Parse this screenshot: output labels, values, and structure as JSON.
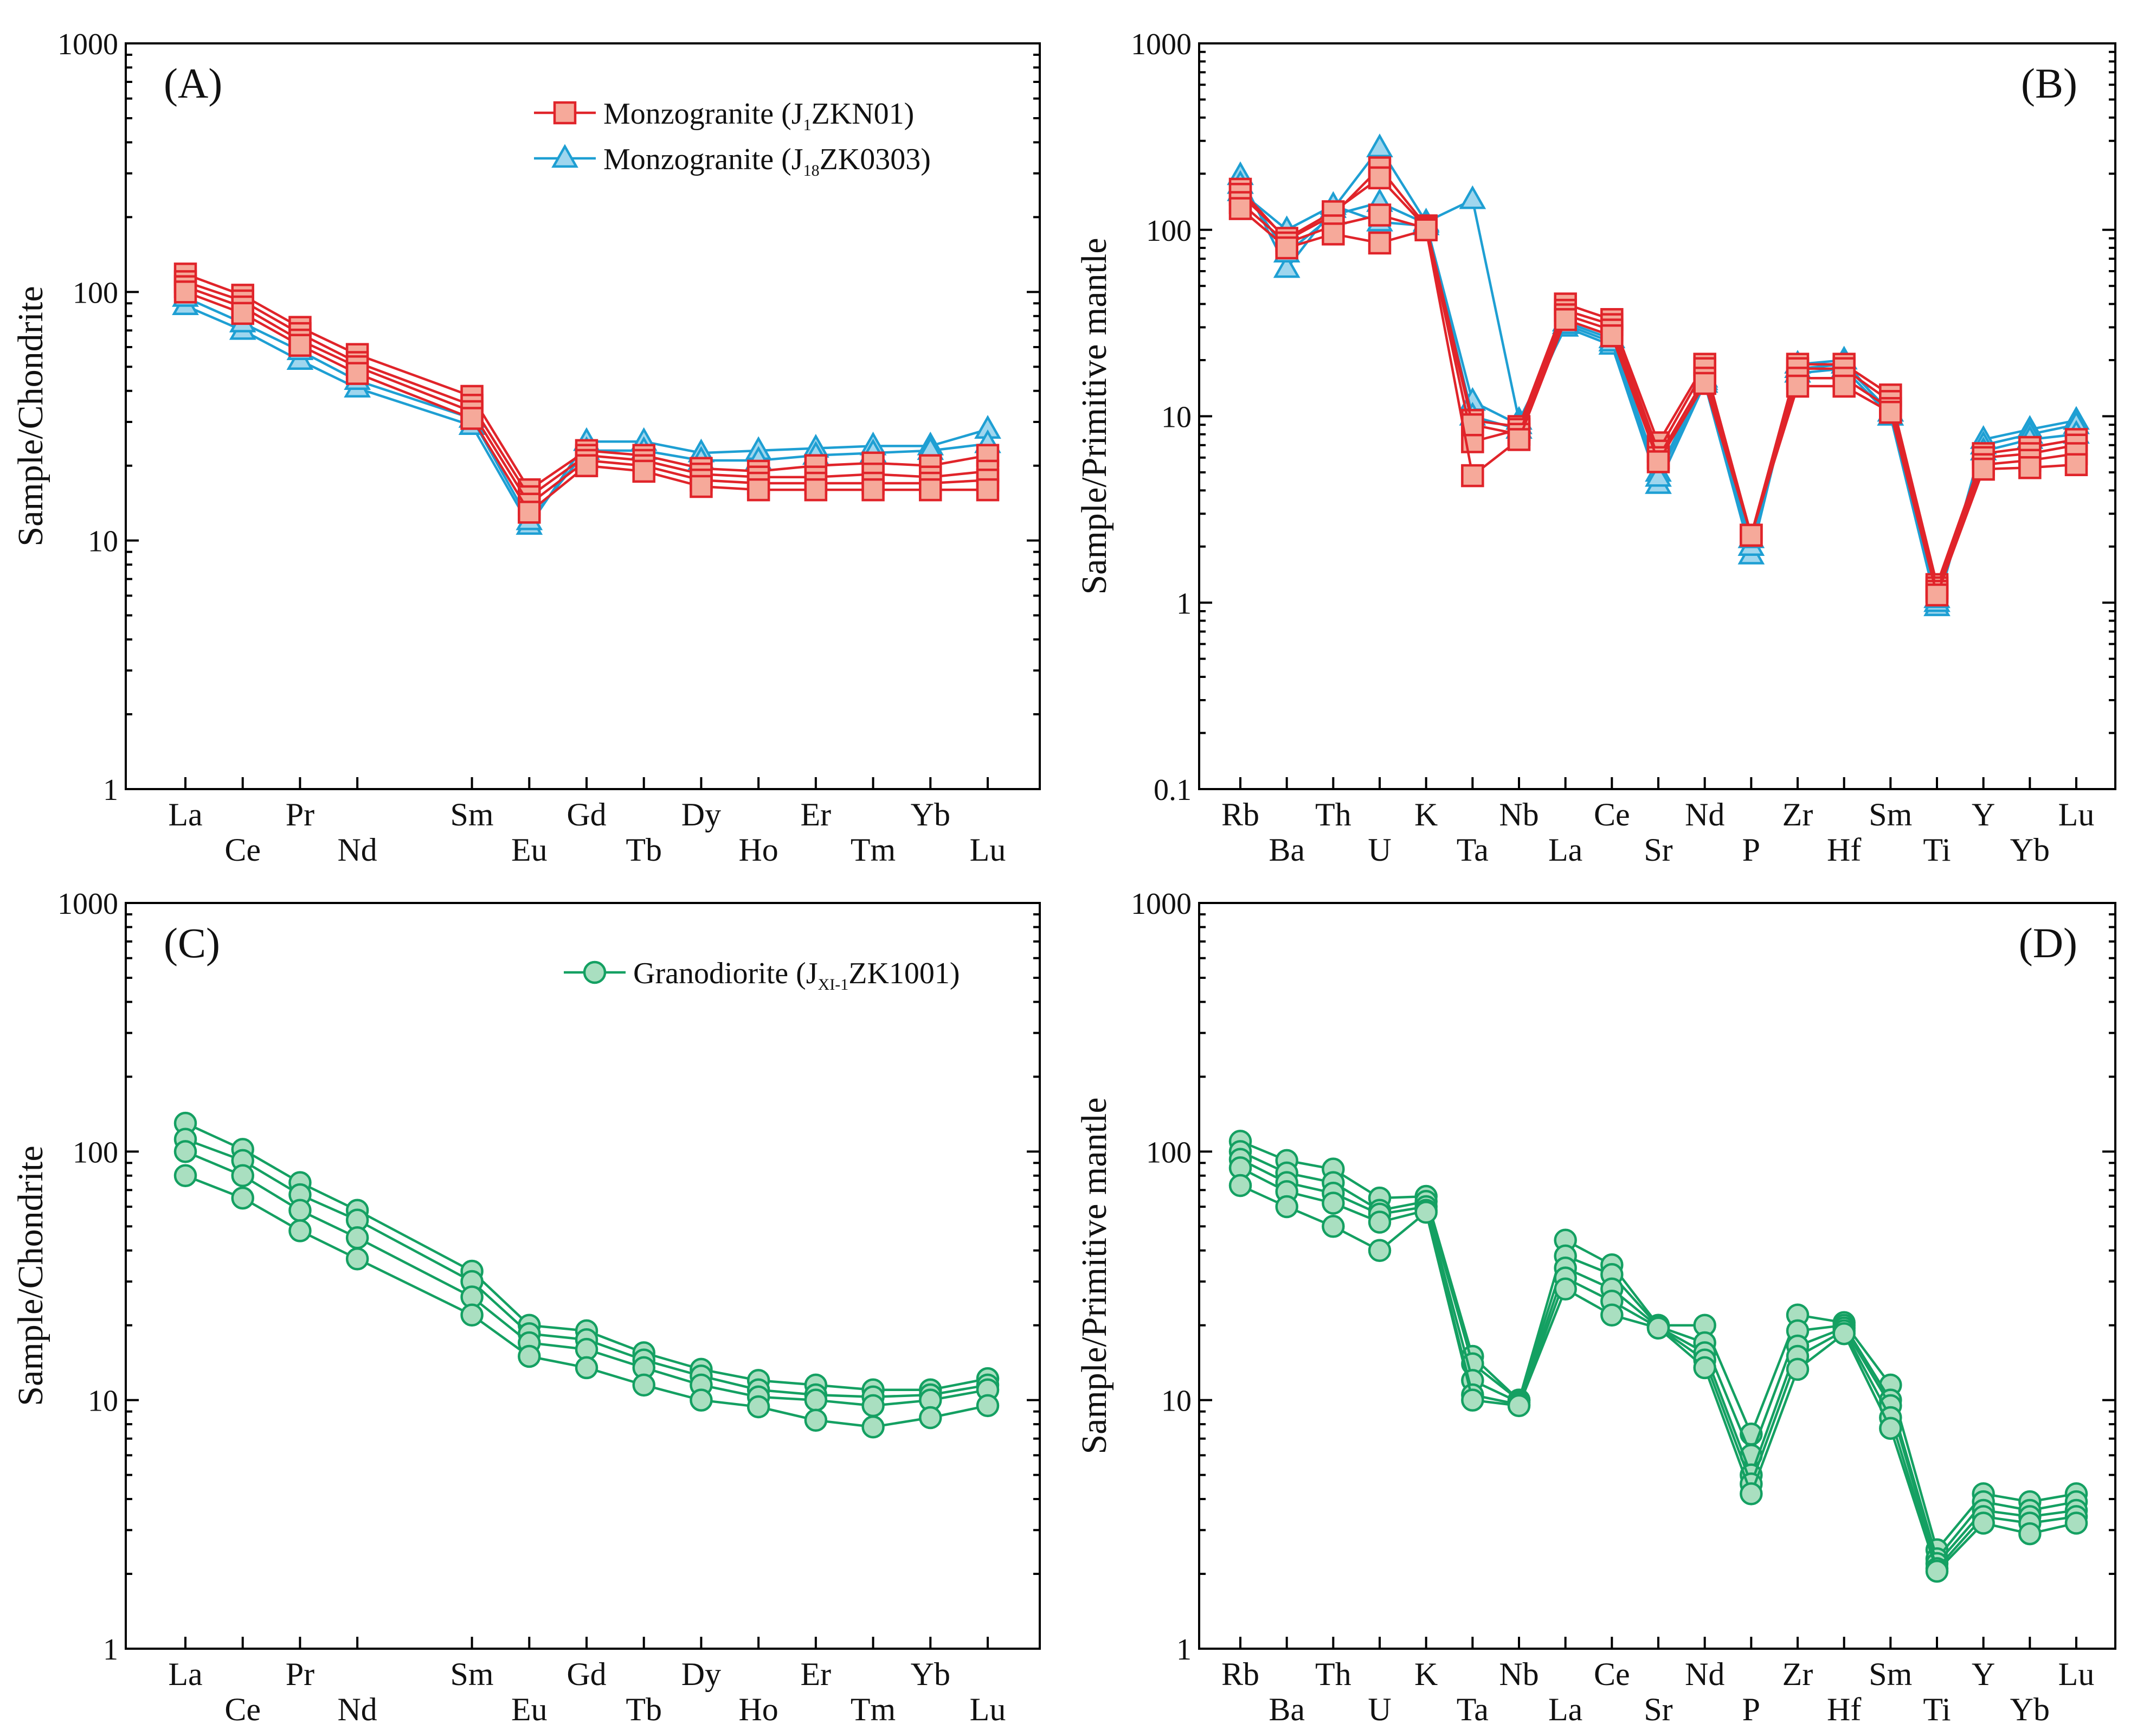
{
  "colors": {
    "red_line": "#e0242a",
    "red_fill": "#f6a99a",
    "blue_line": "#1e9fd3",
    "blue_fill": "#9fd6ee",
    "green_line": "#14a062",
    "green_fill": "#a9dfc0",
    "axis": "#000000"
  },
  "chart_data": [
    {
      "id": "A",
      "type": "line",
      "panel_label": "(A)",
      "ylabel": "Sample/Chondrite",
      "yscale": "log",
      "ylim": [
        1,
        1000
      ],
      "ytick_values": [
        1,
        10,
        100,
        1000
      ],
      "ytick_labels": [
        "1",
        "10",
        "100",
        "1000"
      ],
      "categories": [
        "La",
        "Ce",
        "Pr",
        "Nd",
        "Sm",
        "Eu",
        "Gd",
        "Tb",
        "Dy",
        "Ho",
        "Er",
        "Tm",
        "Yb",
        "Lu"
      ],
      "x_positions": [
        0,
        1,
        2,
        3,
        5,
        6,
        7,
        8,
        9,
        10,
        11,
        12,
        13,
        14
      ],
      "legend_position": "top-right",
      "legend": [
        {
          "label": "Monzogranite (J",
          "sub": "1",
          "rest": "ZKN01)",
          "group": "red"
        },
        {
          "label": "Monzogranite (J",
          "sub": "18",
          "rest": "ZK0303)",
          "group": "blue"
        }
      ],
      "series": [
        {
          "name": "J18ZK0303-1",
          "group": "blue",
          "marker": "triangle",
          "values": [
            88,
            70,
            53,
            41,
            29,
            11.5,
            25,
            25,
            22.5,
            23,
            23.5,
            24,
            24,
            28
          ]
        },
        {
          "name": "J18ZK0303-2",
          "group": "blue",
          "marker": "triangle",
          "values": [
            95,
            75,
            58,
            44,
            31,
            12,
            23,
            23,
            21,
            21,
            22,
            22.5,
            23,
            24.5
          ]
        },
        {
          "name": "J1ZKN01-1",
          "group": "red",
          "marker": "square",
          "values": [
            118,
            97,
            72,
            56,
            38,
            16,
            23,
            22,
            19.5,
            19,
            20,
            20.5,
            20,
            22
          ]
        },
        {
          "name": "J1ZKN01-2",
          "group": "red",
          "marker": "square",
          "values": [
            110,
            92,
            68,
            52,
            35,
            15,
            22,
            21,
            18.5,
            18,
            18,
            18.5,
            18,
            19
          ]
        },
        {
          "name": "J1ZKN01-3",
          "group": "red",
          "marker": "square",
          "values": [
            105,
            87,
            64,
            50,
            33,
            14,
            21,
            20,
            17.5,
            17,
            17,
            17,
            17,
            17.5
          ]
        },
        {
          "name": "J1ZKN01-4",
          "group": "red",
          "marker": "square",
          "values": [
            100,
            82,
            61,
            47,
            31,
            13,
            20,
            19,
            16.5,
            16,
            16,
            16,
            16,
            16
          ]
        }
      ]
    },
    {
      "id": "B",
      "type": "line",
      "panel_label": "(B)",
      "ylabel": "Sample/Primitive mantle",
      "yscale": "log",
      "ylim": [
        0.1,
        1000
      ],
      "ytick_values": [
        0.1,
        1,
        10,
        100,
        1000
      ],
      "ytick_labels": [
        "0.1",
        "1",
        "10",
        "100",
        "1000"
      ],
      "categories": [
        "Rb",
        "Ba",
        "Th",
        "U",
        "K",
        "Ta",
        "Nb",
        "La",
        "Ce",
        "Sr",
        "Nd",
        "P",
        "Zr",
        "Hf",
        "Sm",
        "Ti",
        "Y",
        "Yb",
        "Lu"
      ],
      "x_positions": [
        0,
        1,
        2,
        3,
        4,
        5,
        6,
        7,
        8,
        9,
        10,
        11,
        12,
        13,
        14,
        15,
        16,
        17,
        18
      ],
      "series": [
        {
          "name": "J18ZK0303-1",
          "group": "blue",
          "marker": "triangle",
          "values": [
            195,
            62,
            130,
            275,
            110,
            145,
            9.5,
            30,
            24,
            4.3,
            15,
            1.8,
            19,
            20,
            10,
            0.95,
            7.5,
            8.5,
            9.5
          ]
        },
        {
          "name": "J18ZK0303-2",
          "group": "blue",
          "marker": "triangle",
          "values": [
            175,
            75,
            120,
            140,
            108,
            12,
            9,
            32,
            26,
            5,
            16,
            2,
            18,
            19,
            10.5,
            1.0,
            7,
            8,
            9
          ]
        },
        {
          "name": "J18ZK0303-3",
          "group": "blue",
          "marker": "triangle",
          "values": [
            160,
            100,
            135,
            110,
            105,
            10,
            8.5,
            31,
            25,
            4.7,
            15.5,
            2.2,
            17,
            18,
            10,
            1.05,
            6.5,
            7.5,
            8
          ]
        },
        {
          "name": "J1ZKN01-1",
          "group": "red",
          "marker": "square",
          "values": [
            165,
            88,
            120,
            215,
            105,
            9.5,
            8.8,
            40,
            33,
            7.2,
            19,
            2.3,
            19,
            19,
            13,
            1.25,
            6.3,
            6.8,
            7.5
          ]
        },
        {
          "name": "J1ZKN01-2",
          "group": "red",
          "marker": "square",
          "values": [
            155,
            90,
            125,
            190,
            103,
            7.3,
            8.5,
            37,
            31,
            6.5,
            18,
            2.3,
            18,
            18,
            12,
            1.2,
            6,
            6.3,
            7
          ]
        },
        {
          "name": "J1ZKN01-3",
          "group": "red",
          "marker": "square",
          "values": [
            140,
            85,
            105,
            120,
            102,
            9,
            8,
            35,
            29,
            6,
            16,
            2.3,
            16,
            16,
            11,
            1.15,
            5.5,
            5.8,
            6.3
          ]
        },
        {
          "name": "J1ZKN01-4",
          "group": "red",
          "marker": "square",
          "values": [
            130,
            80,
            95,
            85,
            100,
            4.8,
            7.5,
            33,
            27,
            5.7,
            15,
            2.3,
            14.5,
            14.5,
            10.5,
            1.1,
            5.2,
            5.3,
            5.5
          ]
        }
      ]
    },
    {
      "id": "C",
      "type": "line",
      "panel_label": "(C)",
      "ylabel": "Sample/Chondrite",
      "yscale": "log",
      "ylim": [
        1,
        1000
      ],
      "ytick_values": [
        1,
        10,
        100,
        1000
      ],
      "ytick_labels": [
        "1",
        "10",
        "100",
        "1000"
      ],
      "categories": [
        "La",
        "Ce",
        "Pr",
        "Nd",
        "Sm",
        "Eu",
        "Gd",
        "Tb",
        "Dy",
        "Ho",
        "Er",
        "Tm",
        "Yb",
        "Lu"
      ],
      "x_positions": [
        0,
        1,
        2,
        3,
        5,
        6,
        7,
        8,
        9,
        10,
        11,
        12,
        13,
        14
      ],
      "legend_position": "top-right",
      "legend": [
        {
          "label": "Granodiorite (J",
          "sub": "XI-1",
          "rest": "ZK1001)",
          "group": "green"
        }
      ],
      "series": [
        {
          "name": "JXI-1ZK1001-1",
          "group": "green",
          "marker": "circle",
          "values": [
            130,
            102,
            75,
            58,
            33,
            20,
            19,
            15.5,
            13.3,
            12,
            11.5,
            11,
            11,
            12.2
          ]
        },
        {
          "name": "JXI-1ZK1001-2",
          "group": "green",
          "marker": "circle",
          "values": [
            112,
            92,
            67,
            53,
            30,
            18.5,
            17.5,
            14.5,
            12.5,
            11,
            10.5,
            10.3,
            10.5,
            11.5
          ]
        },
        {
          "name": "JXI-1ZK1001-3",
          "group": "green",
          "marker": "circle",
          "values": [
            100,
            80,
            58,
            45,
            26,
            17,
            16,
            13.5,
            11.5,
            10.3,
            10,
            9.5,
            10,
            11
          ]
        },
        {
          "name": "JXI-1ZK1001-4",
          "group": "green",
          "marker": "circle",
          "values": [
            80,
            65,
            48,
            37,
            22,
            15,
            13.5,
            11.5,
            10,
            9.4,
            8.3,
            7.8,
            8.5,
            9.5
          ]
        }
      ]
    },
    {
      "id": "D",
      "type": "line",
      "panel_label": "(D)",
      "ylabel": "Sample/Primitive mantle",
      "yscale": "log",
      "ylim": [
        1,
        1000
      ],
      "ytick_values": [
        1,
        10,
        100,
        1000
      ],
      "ytick_labels": [
        "1",
        "10",
        "100",
        "1000"
      ],
      "categories": [
        "Rb",
        "Ba",
        "Th",
        "U",
        "K",
        "Ta",
        "Nb",
        "La",
        "Ce",
        "Sr",
        "Nd",
        "P",
        "Zr",
        "Hf",
        "Sm",
        "Ti",
        "Y",
        "Yb",
        "Lu"
      ],
      "x_positions": [
        0,
        1,
        2,
        3,
        4,
        5,
        6,
        7,
        8,
        9,
        10,
        11,
        12,
        13,
        14,
        15,
        16,
        17,
        18
      ],
      "series": [
        {
          "name": "JXI-1ZK1001-1",
          "group": "green",
          "marker": "circle",
          "values": [
            110,
            92,
            85,
            65,
            66,
            15,
            10,
            44,
            35,
            20,
            20,
            7.3,
            22,
            20.5,
            11.5,
            2.5,
            4.2,
            3.9,
            4.2
          ]
        },
        {
          "name": "JXI-1ZK1001-2",
          "group": "green",
          "marker": "circle",
          "values": [
            100,
            82,
            75,
            58,
            63,
            14,
            10,
            38,
            32,
            19.8,
            17,
            6,
            19,
            20,
            10,
            2.3,
            3.9,
            3.6,
            3.9
          ]
        },
        {
          "name": "JXI-1ZK1001-3",
          "group": "green",
          "marker": "circle",
          "values": [
            93,
            75,
            68,
            56,
            60,
            12,
            9.8,
            34,
            28,
            19.7,
            15.5,
            5,
            16.5,
            19.5,
            9.5,
            2.2,
            3.6,
            3.4,
            3.6
          ]
        },
        {
          "name": "JXI-1ZK1001-4",
          "group": "green",
          "marker": "circle",
          "values": [
            86,
            69,
            62,
            52,
            58,
            10.5,
            9.6,
            31,
            25,
            19.6,
            14.5,
            4.6,
            15,
            19,
            8.5,
            2.1,
            3.4,
            3.2,
            3.4
          ]
        },
        {
          "name": "JXI-1ZK1001-5",
          "group": "green",
          "marker": "circle",
          "values": [
            73,
            60,
            50,
            40,
            57,
            10,
            9.5,
            28,
            22,
            19.5,
            13.5,
            4.2,
            13.3,
            18.5,
            7.7,
            2.05,
            3.2,
            2.9,
            3.2
          ]
        }
      ]
    }
  ]
}
